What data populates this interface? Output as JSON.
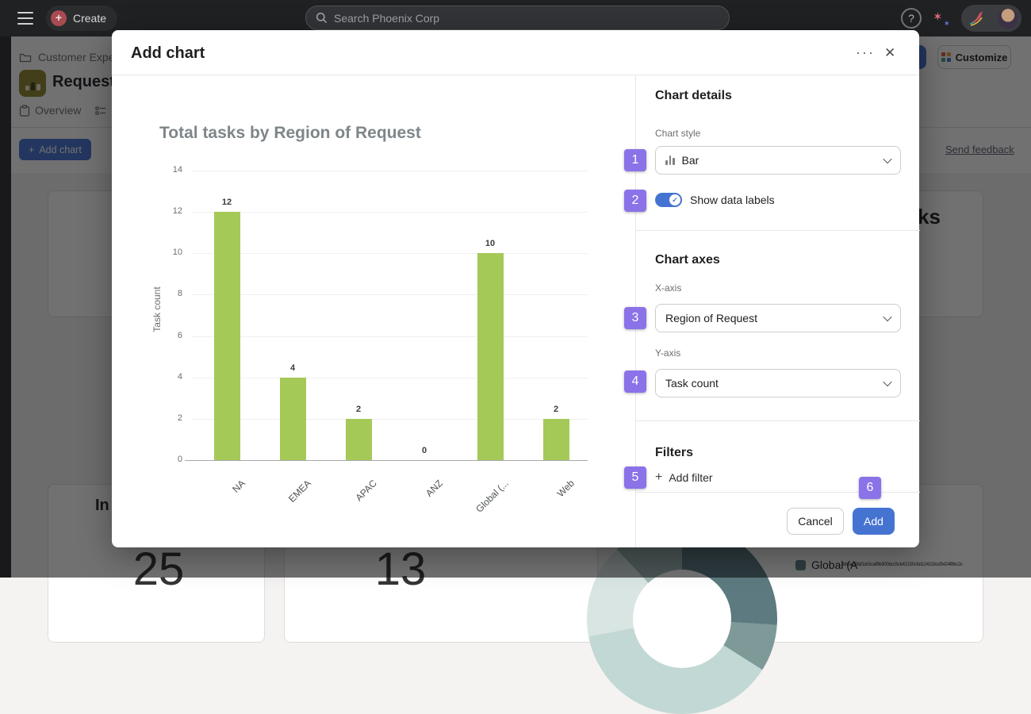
{
  "topbar": {
    "create_label": "Create",
    "search_placeholder": "Search Phoenix Corp",
    "help_glyph": "?"
  },
  "page": {
    "breadcrumb": "Customer Expe",
    "title": "Request",
    "tab_overview": "Overview",
    "tab_list_fragment": "L",
    "add_chart_button": "Add chart",
    "send_feedback_link": "Send feedback",
    "customize_button": "Customize",
    "top_right_card_title_fragment": "ks",
    "bottom_left_card_title_fragment": "In",
    "stat_left": "25",
    "stat_middle": "13",
    "legend_label": "Global (A",
    "legend_small_text": "bbba08faf1dc5caf9b900bcc5cb42150c9d124216cd5424f86c2c"
  },
  "modal": {
    "title": "Add chart",
    "menu_glyph": "···",
    "close_glyph": "✕",
    "chart_details_heading": "Chart details",
    "chart_style_label": "Chart style",
    "chart_style_value": "Bar",
    "show_data_labels_label": "Show data labels",
    "chart_axes_heading": "Chart axes",
    "x_axis_label": "X-axis",
    "x_axis_value": "Region of Request",
    "y_axis_label": "Y-axis",
    "y_axis_value": "Task count",
    "filters_heading": "Filters",
    "add_filter_label": "Add filter",
    "add_filter_plus": "+",
    "cancel_button": "Cancel",
    "add_button": "Add"
  },
  "badges": {
    "b1": "1",
    "b2": "2",
    "b3": "3",
    "b4": "4",
    "b5": "5",
    "b6": "6"
  },
  "chart_data": {
    "type": "bar",
    "title": "Total tasks by Region of Request",
    "categories": [
      "NA",
      "EMEA",
      "APAC",
      "ANZ",
      "Global (...",
      "Web"
    ],
    "values": [
      12,
      4,
      2,
      0,
      10,
      2
    ],
    "xlabel": "Region of Request",
    "ylabel": "Task count",
    "ylim": [
      0,
      14
    ],
    "yticks": [
      0,
      2,
      4,
      6,
      8,
      10,
      12,
      14
    ],
    "grid": true,
    "data_labels": true,
    "legend_position": "none",
    "bar_color": "#a5c957"
  },
  "colors": {
    "accent_blue": "#4573d2",
    "bar_green": "#a5c957",
    "badge_purple": "#8b72e8",
    "create_red": "#a84b52",
    "topbar_bg": "#1f2123"
  }
}
